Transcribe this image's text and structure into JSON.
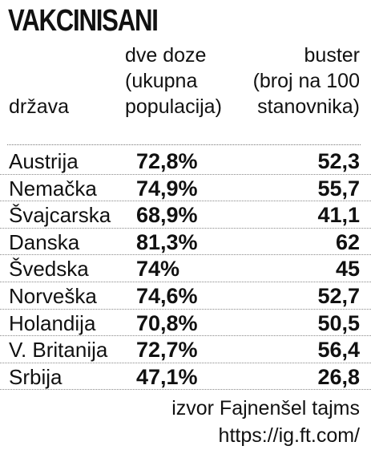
{
  "title": "VAKCINISANI",
  "chart_data": {
    "type": "table",
    "columns": [
      {
        "label": "država"
      },
      {
        "label_lines": [
          "dve doze",
          "(ukupna",
          "populacija)"
        ]
      },
      {
        "label_lines": [
          "buster",
          "(broj na 100",
          "stanovnika)"
        ]
      }
    ],
    "rows": [
      {
        "country": "Austrija",
        "two_doses": "72,8%",
        "booster": "52,3"
      },
      {
        "country": "Nemačka",
        "two_doses": "74,9%",
        "booster": "55,7"
      },
      {
        "country": "Švajcarska",
        "two_doses": "68,9%",
        "booster": "41,1"
      },
      {
        "country": "Danska",
        "two_doses": "81,3%",
        "booster": "62"
      },
      {
        "country": "Švedska",
        "two_doses": "74%",
        "booster": "45"
      },
      {
        "country": "Norveška",
        "two_doses": "74,6%",
        "booster": "52,7"
      },
      {
        "country": "Holandija",
        "two_doses": "70,8%",
        "booster": "50,5"
      },
      {
        "country": "V. Britanija",
        "two_doses": "72,7%",
        "booster": "56,4"
      },
      {
        "country": "Srbija",
        "two_doses": "47,1%",
        "booster": "26,8"
      }
    ]
  },
  "source": {
    "line1": "izvor Fajnenšel tajms",
    "line2": "https://ig.ft.com/"
  }
}
